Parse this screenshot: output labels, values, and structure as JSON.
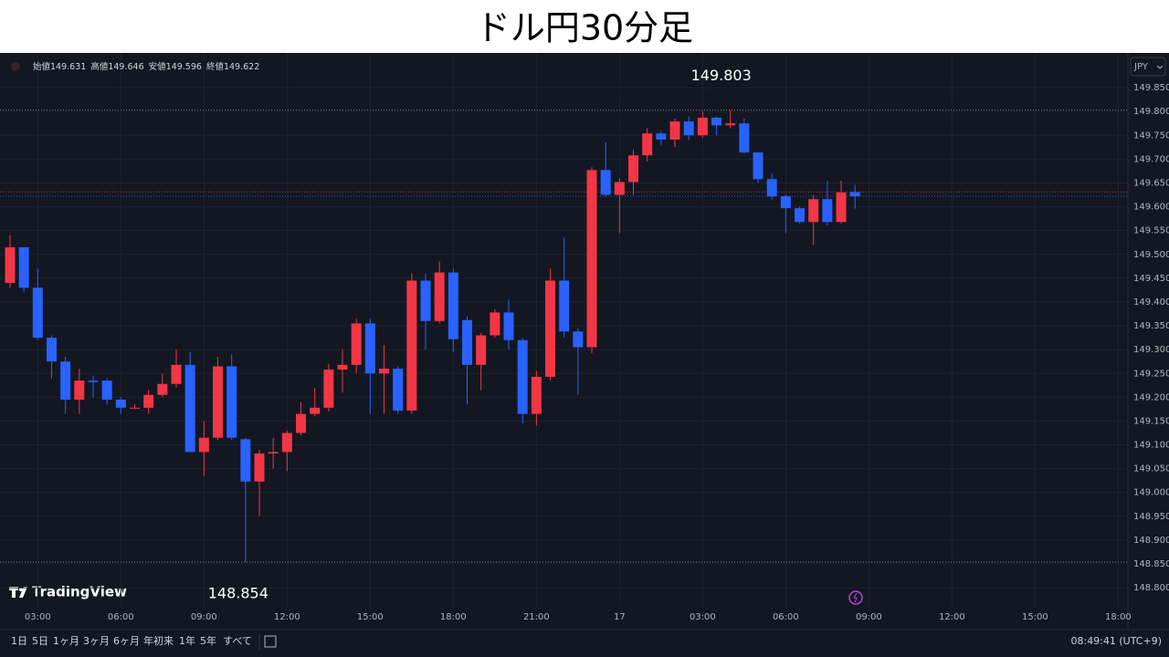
{
  "chart_data": {
    "type": "candlestick",
    "title": "ドル円30分足",
    "currency": "JPY",
    "ohlc_header": [
      {
        "label": "始値",
        "value": 149.631
      },
      {
        "label": "高値",
        "value": 149.646
      },
      {
        "label": "安値",
        "value": 149.596
      },
      {
        "label": "終値",
        "value": 149.622
      }
    ],
    "up_color": "#f23645",
    "down_color": "#2962ff",
    "open": [
      149.44,
      149.515,
      149.43,
      149.325,
      149.275,
      149.195,
      149.235,
      149.235,
      149.195,
      149.178,
      149.178,
      149.205,
      149.228,
      149.268,
      149.085,
      149.115,
      149.265,
      149.112,
      149.023,
      149.082,
      149.085,
      149.125,
      149.165,
      149.178,
      149.258,
      149.268,
      149.355,
      149.25,
      149.26,
      149.172,
      149.445,
      149.36,
      149.462,
      149.362,
      149.268,
      149.33,
      149.378,
      149.32,
      149.165,
      149.243,
      149.445,
      149.338,
      149.305,
      149.677,
      149.625,
      149.652,
      149.708,
      149.754,
      149.741,
      149.779,
      149.75,
      149.787,
      149.771,
      149.775,
      149.714,
      149.658,
      149.622,
      149.597,
      149.568,
      149.616,
      149.568,
      149.631
    ],
    "high": [
      149.54,
      149.515,
      149.47,
      149.33,
      149.285,
      149.26,
      149.245,
      149.24,
      149.2,
      149.185,
      149.215,
      149.25,
      149.3,
      149.295,
      149.15,
      149.285,
      149.29,
      149.115,
      149.09,
      149.115,
      149.13,
      149.19,
      149.22,
      149.27,
      149.3,
      149.365,
      149.365,
      149.31,
      149.265,
      149.46,
      149.46,
      149.485,
      149.47,
      149.37,
      149.335,
      149.385,
      149.405,
      149.325,
      149.255,
      149.47,
      149.535,
      149.345,
      149.683,
      149.735,
      149.66,
      149.72,
      149.765,
      149.76,
      149.785,
      149.79,
      149.8,
      149.789,
      149.803,
      149.785,
      149.715,
      149.67,
      149.625,
      149.6,
      149.625,
      149.655,
      149.655,
      149.646
    ],
    "low": [
      149.43,
      149.42,
      149.32,
      149.24,
      149.165,
      149.165,
      149.2,
      149.185,
      149.165,
      149.175,
      149.165,
      149.2,
      149.22,
      149.085,
      149.035,
      149.11,
      149.11,
      148.854,
      148.95,
      149.05,
      149.045,
      149.12,
      149.16,
      149.17,
      149.21,
      149.25,
      149.165,
      149.165,
      149.165,
      149.165,
      149.3,
      149.355,
      149.295,
      149.185,
      149.215,
      149.325,
      149.3,
      149.145,
      149.14,
      149.235,
      149.325,
      149.205,
      149.293,
      149.62,
      149.545,
      149.625,
      149.695,
      149.73,
      149.725,
      149.74,
      149.745,
      149.75,
      149.765,
      149.712,
      149.65,
      149.615,
      149.545,
      149.565,
      149.52,
      149.56,
      149.565,
      149.596
    ],
    "close": [
      149.515,
      149.43,
      149.325,
      149.275,
      149.195,
      149.235,
      149.232,
      149.195,
      149.178,
      149.178,
      149.205,
      149.228,
      149.268,
      149.085,
      149.115,
      149.265,
      149.115,
      149.023,
      149.082,
      149.085,
      149.125,
      149.165,
      149.178,
      149.258,
      149.268,
      149.355,
      149.25,
      149.26,
      149.172,
      149.445,
      149.36,
      149.462,
      149.322,
      149.268,
      149.33,
      149.378,
      149.32,
      149.165,
      149.243,
      149.445,
      149.338,
      149.305,
      149.677,
      149.625,
      149.652,
      149.708,
      149.754,
      149.741,
      149.779,
      149.75,
      149.787,
      149.771,
      149.775,
      149.714,
      149.658,
      149.622,
      149.597,
      149.568,
      149.616,
      149.568,
      149.63,
      149.622
    ],
    "xlim": [
      -0.725,
      80.7
    ],
    "xticks": [
      {
        "value": 2,
        "label": "03:00"
      },
      {
        "value": 8,
        "label": "06:00"
      },
      {
        "value": 14,
        "label": "09:00"
      },
      {
        "value": 20,
        "label": "12:00"
      },
      {
        "value": 26,
        "label": "15:00"
      },
      {
        "value": 32,
        "label": "18:00"
      },
      {
        "value": 38,
        "label": "21:00"
      },
      {
        "value": 44,
        "label": "17"
      },
      {
        "value": 50,
        "label": "03:00"
      },
      {
        "value": 56,
        "label": "06:00"
      },
      {
        "value": 62,
        "label": "09:00"
      },
      {
        "value": 68,
        "label": "12:00"
      },
      {
        "value": 74,
        "label": "15:00"
      },
      {
        "value": 80,
        "label": "18:00"
      }
    ],
    "ylim": [
      148.76,
      149.923
    ],
    "yticks": [
      {
        "value": 149.85,
        "label": "149.850"
      },
      {
        "value": 149.8,
        "label": "149.800"
      },
      {
        "value": 149.75,
        "label": "149.750"
      },
      {
        "value": 149.7,
        "label": "149.700"
      },
      {
        "value": 149.65,
        "label": "149.650"
      },
      {
        "value": 149.6,
        "label": "149.600"
      },
      {
        "value": 149.55,
        "label": "149.550"
      },
      {
        "value": 149.5,
        "label": "149.500"
      },
      {
        "value": 149.45,
        "label": "149.450"
      },
      {
        "value": 149.4,
        "label": "149.400"
      },
      {
        "value": 149.35,
        "label": "149.350"
      },
      {
        "value": 149.3,
        "label": "149.300"
      },
      {
        "value": 149.25,
        "label": "149.250"
      },
      {
        "value": 149.2,
        "label": "149.200"
      },
      {
        "value": 149.15,
        "label": "149.150"
      },
      {
        "value": 149.1,
        "label": "149.100"
      },
      {
        "value": 149.05,
        "label": "149.050"
      },
      {
        "value": 149,
        "label": "149.000"
      },
      {
        "value": 148.95,
        "label": "148.950"
      },
      {
        "value": 148.9,
        "label": "148.900"
      },
      {
        "value": 148.85,
        "label": "148.850"
      },
      {
        "value": 148.8,
        "label": "148.800"
      }
    ],
    "grid": true,
    "high_marker": 149.803,
    "low_marker": 148.854,
    "logo": "TradingView",
    "ranges": [
      "1日",
      "5日",
      "1ヶ月",
      "3ヶ月",
      "6ヶ月",
      "年初来",
      "1年",
      "5年",
      "すべて"
    ],
    "clock": "08:49:41 (UTC+9)"
  }
}
